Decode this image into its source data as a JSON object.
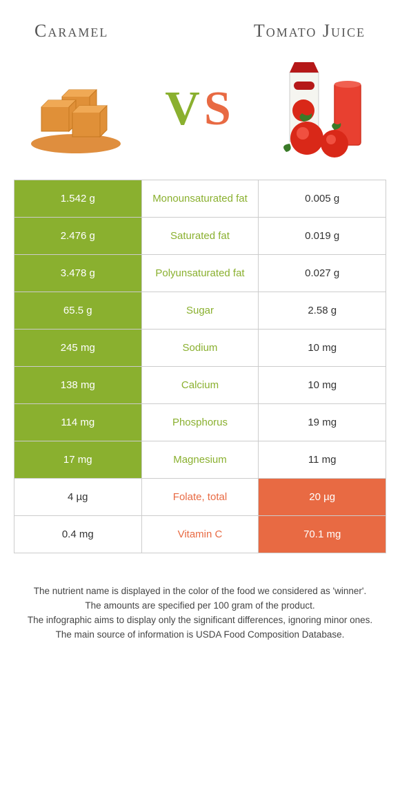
{
  "header": {
    "left_title": "Caramel",
    "right_title": "Tomato Juice",
    "vs_v": "V",
    "vs_s": "S"
  },
  "colors": {
    "left": "#8ab02f",
    "right": "#e86a43",
    "border": "#cccccc",
    "text": "#333333"
  },
  "table": {
    "rows": [
      {
        "left": "1.542 g",
        "label": "Monounsaturated fat",
        "right": "0.005 g",
        "winner": "left"
      },
      {
        "left": "2.476 g",
        "label": "Saturated fat",
        "right": "0.019 g",
        "winner": "left"
      },
      {
        "left": "3.478 g",
        "label": "Polyunsaturated fat",
        "right": "0.027 g",
        "winner": "left"
      },
      {
        "left": "65.5 g",
        "label": "Sugar",
        "right": "2.58 g",
        "winner": "left"
      },
      {
        "left": "245 mg",
        "label": "Sodium",
        "right": "10 mg",
        "winner": "left"
      },
      {
        "left": "138 mg",
        "label": "Calcium",
        "right": "10 mg",
        "winner": "left"
      },
      {
        "left": "114 mg",
        "label": "Phosphorus",
        "right": "19 mg",
        "winner": "left"
      },
      {
        "left": "17 mg",
        "label": "Magnesium",
        "right": "11 mg",
        "winner": "left"
      },
      {
        "left": "4 µg",
        "label": "Folate, total",
        "right": "20 µg",
        "winner": "right"
      },
      {
        "left": "0.4 mg",
        "label": "Vitamin C",
        "right": "70.1 mg",
        "winner": "right"
      }
    ]
  },
  "footer": {
    "line1": "The nutrient name is displayed in the color of the food we considered as 'winner'.",
    "line2": "The amounts are specified per 100 gram of the product.",
    "line3": "The infographic aims to display only the significant differences, ignoring minor ones.",
    "line4": "The main source of information is USDA Food Composition Database."
  }
}
